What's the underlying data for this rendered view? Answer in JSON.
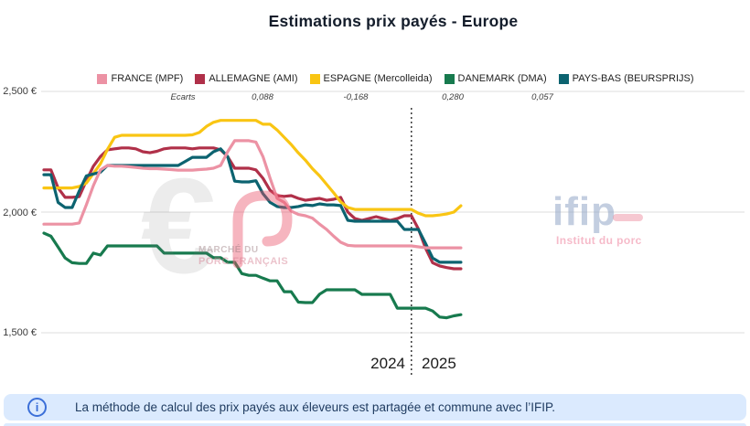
{
  "title": "Estimations prix payés - Europe",
  "legend": [
    {
      "label": "FRANCE (MPF)",
      "color": "#ec92a4"
    },
    {
      "label": "ALLEMAGNE (AMI)",
      "color": "#b03049"
    },
    {
      "label": "ESPAGNE (Mercolleida)",
      "color": "#f9c513"
    },
    {
      "label": "DANEMARK (DMA)",
      "color": "#177a4e"
    },
    {
      "label": "PAYS-BAS (BEURSPRIJS)",
      "color": "#0c6370"
    }
  ],
  "ecarts": {
    "label": "Ecarts",
    "values": [
      "0,088",
      "-0,168",
      "0,280",
      "0,057"
    ]
  },
  "y_axis": {
    "labels": [
      "2,500 €",
      "2,000 €",
      "1,500 €"
    ],
    "values": [
      2500,
      2000,
      1500
    ]
  },
  "x_axis": {
    "year_left": "2024",
    "year_right": "2025"
  },
  "chart_data": {
    "type": "line",
    "x_unit": "week (weekly prices, 2024-W01 through 2025-W08)",
    "ylim": [
      1500,
      2500
    ],
    "grid": "horizontal only",
    "legend_position": "top",
    "divider_week": 52,
    "divider_style": "vertical dotted line separating 2024 and 2025",
    "series": [
      {
        "name": "FRANCE (MPF)",
        "values": [
          1950,
          1950,
          1950,
          1950,
          1950,
          1955,
          2030,
          2110,
          2175,
          2193,
          2190,
          2190,
          2188,
          2185,
          2182,
          2180,
          2180,
          2178,
          2176,
          2174,
          2174,
          2174,
          2176,
          2178,
          2182,
          2193,
          2250,
          2296,
          2296,
          2296,
          2290,
          2230,
          2140,
          2057,
          2040,
          2004,
          1990,
          1985,
          1975,
          1950,
          1928,
          1900,
          1875,
          1862,
          1860,
          1860,
          1860,
          1860,
          1860,
          1860,
          1860,
          1860,
          1860,
          1856,
          1852,
          1852,
          1852,
          1852,
          1852,
          1852
        ]
      },
      {
        "name": "ALLEMAGNE (AMI)",
        "values": [
          2175,
          2175,
          2100,
          2061,
          2061,
          2064,
          2130,
          2190,
          2230,
          2258,
          2262,
          2266,
          2266,
          2262,
          2250,
          2246,
          2252,
          2262,
          2266,
          2266,
          2266,
          2262,
          2266,
          2266,
          2266,
          2258,
          2230,
          2182,
          2182,
          2182,
          2175,
          2140,
          2090,
          2068,
          2065,
          2068,
          2057,
          2049,
          2053,
          2057,
          2049,
          2053,
          2061,
          2000,
          1973,
          1966,
          1973,
          1981,
          1973,
          1966,
          1973,
          1985,
          1985,
          1930,
          1850,
          1790,
          1777,
          1770,
          1765,
          1765
        ]
      },
      {
        "name": "ESPAGNE (Mercolleida)",
        "values": [
          2100,
          2100,
          2100,
          2100,
          2100,
          2106,
          2120,
          2160,
          2200,
          2260,
          2310,
          2318,
          2318,
          2318,
          2318,
          2318,
          2318,
          2318,
          2318,
          2318,
          2318,
          2320,
          2330,
          2355,
          2372,
          2380,
          2380,
          2380,
          2380,
          2380,
          2380,
          2364,
          2364,
          2340,
          2310,
          2280,
          2245,
          2215,
          2180,
          2150,
          2115,
          2080,
          2042,
          2019,
          2011,
          2011,
          2011,
          2011,
          2011,
          2011,
          2011,
          2011,
          2011,
          1995,
          1985,
          1985,
          1988,
          1992,
          2000,
          2026
        ]
      },
      {
        "name": "DANEMARK (DMA)",
        "values": [
          1913,
          1900,
          1855,
          1810,
          1790,
          1787,
          1787,
          1830,
          1822,
          1860,
          1860,
          1860,
          1860,
          1860,
          1860,
          1860,
          1860,
          1830,
          1830,
          1830,
          1830,
          1830,
          1830,
          1830,
          1811,
          1811,
          1792,
          1792,
          1745,
          1738,
          1738,
          1726,
          1715,
          1715,
          1670,
          1670,
          1627,
          1625,
          1625,
          1660,
          1678,
          1678,
          1678,
          1678,
          1678,
          1659,
          1659,
          1659,
          1659,
          1659,
          1602,
          1602,
          1602,
          1602,
          1602,
          1590,
          1565,
          1562,
          1570,
          1575
        ]
      },
      {
        "name": "PAYS-BAS (BEURSPRIJS)",
        "values": [
          2155,
          2155,
          2040,
          2019,
          2019,
          2087,
          2150,
          2158,
          2165,
          2193,
          2193,
          2193,
          2193,
          2193,
          2193,
          2193,
          2193,
          2193,
          2193,
          2193,
          2210,
          2227,
          2227,
          2227,
          2250,
          2262,
          2230,
          2128,
          2125,
          2125,
          2130,
          2076,
          2040,
          2023,
          2019,
          2019,
          2023,
          2030,
          2027,
          2034,
          2030,
          2030,
          2027,
          1966,
          1962,
          1962,
          1962,
          1962,
          1962,
          1962,
          1962,
          1928,
          1928,
          1928,
          1870,
          1810,
          1792,
          1792,
          1792,
          1792
        ]
      }
    ],
    "draw_order": [
      3,
      1,
      2,
      4,
      0
    ]
  },
  "watermarks": {
    "mpf": {
      "euro_glyph": "€",
      "line1": "MARCHÉ DU",
      "line2": "PORC FRANÇAIS"
    },
    "ifip": {
      "name": "ifip",
      "subtitle": "Institut du porc"
    }
  },
  "footer": {
    "icon_glyph": "i",
    "text": "La méthode de calcul des prix payés aux éleveurs est partagée et commune avec l’IFIP."
  }
}
